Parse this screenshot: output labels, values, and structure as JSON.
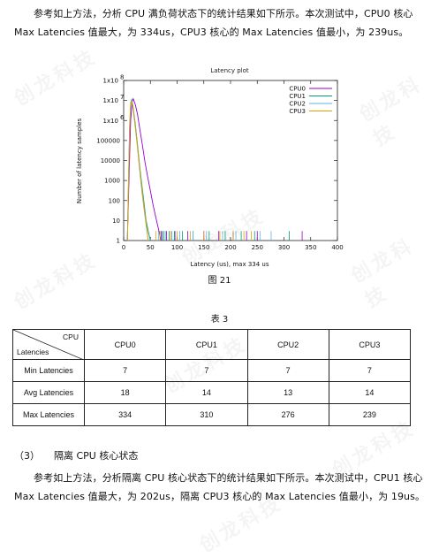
{
  "para1": "参考如上方法，分析 CPU 满负荷状态下的统计结果如下所示。本次测试中，CPU0 核心 Max Latencies 值最大，为 334us，CPU3 核心的 Max Latencies 值最小，为 239us。",
  "figure_caption": "图  21",
  "table_caption": "表  3",
  "table": {
    "corner_top": "CPU",
    "corner_bottom": "Latencies",
    "columns": [
      "CPU0",
      "CPU1",
      "CPU2",
      "CPU3"
    ],
    "rows": [
      {
        "label": "Min Latencies",
        "values": [
          "7",
          "7",
          "7",
          "7"
        ]
      },
      {
        "label": "Avg Latencies",
        "values": [
          "18",
          "14",
          "13",
          "14"
        ]
      },
      {
        "label": "Max Latencies",
        "values": [
          "334",
          "310",
          "276",
          "239"
        ]
      }
    ]
  },
  "section_heading": {
    "number": "（3）",
    "text": "隔离 CPU 核心状态"
  },
  "para2": "参考如上方法，分析隔离 CPU 核心状态下的统计结果如下所示。本次测试中，CPU1 核心 Max Latencies 值最大，为 202us，隔离 CPU3 核心的 Max Latencies 值最小，为 19us。",
  "watermark_text": "创龙科技",
  "chart_data": {
    "type": "line",
    "title": "Latency plot",
    "xlabel": "Latency (us), max 334 us",
    "ylabel": "Number of latency samples",
    "xlim": [
      0,
      400
    ],
    "ylim": [
      1,
      100000000
    ],
    "ylog": true,
    "x_ticks": [
      "0",
      "50",
      "100",
      "150",
      "200",
      "250",
      "300",
      "350",
      "400"
    ],
    "y_ticks": [
      "1",
      "10",
      "100",
      "1000",
      "10000",
      "100000",
      "1x10",
      "1x10",
      "1x10"
    ],
    "y_tick_exponents": [
      "",
      "",
      "",
      "",
      "",
      "",
      "6",
      "7",
      "8"
    ],
    "legend_position": "top-right",
    "series": [
      {
        "name": "CPU0",
        "color": "#9400d3",
        "x": [
          7,
          10,
          13,
          16,
          18,
          22,
          26,
          30,
          35,
          40,
          45,
          50,
          55,
          60,
          65,
          70
        ],
        "y": [
          1,
          1000,
          1000000,
          9000000,
          12000000,
          6000000,
          2000000,
          400000,
          60000,
          8000,
          1500,
          300,
          60,
          15,
          4,
          1
        ]
      },
      {
        "name": "CPU1",
        "color": "#009e73",
        "x": [
          7,
          9,
          11,
          13,
          15,
          18,
          22,
          26,
          30,
          34,
          38,
          42,
          46,
          50
        ],
        "y": [
          1,
          500,
          300000,
          5000000,
          12000000,
          4000000,
          600000,
          60000,
          5000,
          600,
          80,
          10,
          3,
          1
        ]
      },
      {
        "name": "CPU2",
        "color": "#56b4e9",
        "x": [
          7,
          9,
          11,
          13,
          15,
          18,
          22,
          26,
          30,
          34,
          38,
          42,
          46
        ],
        "y": [
          1,
          800,
          500000,
          8000000,
          11000000,
          3000000,
          400000,
          40000,
          3000,
          300,
          40,
          6,
          1
        ]
      },
      {
        "name": "CPU3",
        "color": "#e69f00",
        "x": [
          7,
          9,
          11,
          13,
          15,
          18,
          22,
          26,
          30,
          34,
          38,
          42,
          46
        ],
        "y": [
          1,
          400,
          300000,
          6000000,
          10000000,
          3500000,
          500000,
          50000,
          4000,
          400,
          50,
          8,
          1
        ]
      }
    ],
    "outliers_cpu0": [
      72,
      80,
      96,
      120,
      150,
      178,
      205,
      230,
      250,
      334
    ],
    "outliers_cpu1": [
      70,
      75,
      85,
      95,
      110,
      130,
      160,
      190,
      220,
      245,
      310
    ],
    "outliers_cpu2": [
      65,
      78,
      90,
      105,
      130,
      155,
      185,
      210,
      255,
      276
    ],
    "outliers_cpu3": [
      60,
      68,
      88,
      100,
      125,
      150,
      180,
      205,
      225,
      239
    ]
  }
}
